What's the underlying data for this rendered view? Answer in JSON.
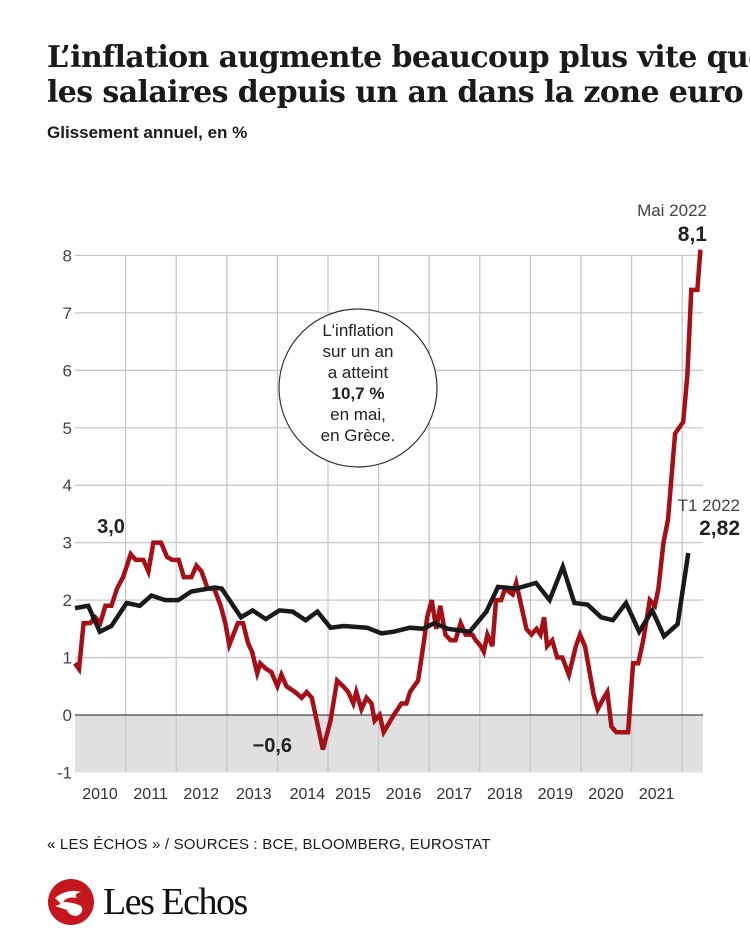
{
  "header": {
    "title_line1": "L’inflation augmente beaucoup plus vite que",
    "title_line2": "les salaires depuis un an dans la zone euro",
    "subtitle": "Glissement annuel, en %"
  },
  "footer": {
    "source": "« LES ÉCHOS » / SOURCES : BCE, BLOOMBERG, EUROSTAT",
    "logo_text": "Les Echos",
    "logo_color": "#c4161c"
  },
  "chart_data": {
    "type": "line",
    "ylim": [
      -1,
      8
    ],
    "yticks": [
      "-1",
      "0",
      "1",
      "2",
      "3",
      "4",
      "5",
      "6",
      "7",
      "8"
    ],
    "xlim": [
      2010,
      2022.4
    ],
    "xtick_labels": [
      "2010",
      "2011",
      "2012",
      "2013",
      "2014",
      "2015",
      "2016",
      "2017",
      "2018",
      "2019",
      "2020",
      "2021"
    ],
    "grid": true,
    "negative_band_color": "#e0e0e0",
    "series": [
      {
        "color": "#a50f15",
        "points": [
          [
            2010.0,
            0.9
          ],
          [
            2010.08,
            0.8
          ],
          [
            2010.17,
            1.6
          ],
          [
            2010.3,
            1.6
          ],
          [
            2010.4,
            1.7
          ],
          [
            2010.5,
            1.6
          ],
          [
            2010.6,
            1.9
          ],
          [
            2010.72,
            1.9
          ],
          [
            2010.83,
            2.2
          ],
          [
            2010.95,
            2.4
          ],
          [
            2011.1,
            2.8
          ],
          [
            2011.2,
            2.7
          ],
          [
            2011.35,
            2.7
          ],
          [
            2011.45,
            2.5
          ],
          [
            2011.55,
            3.0
          ],
          [
            2011.7,
            3.0
          ],
          [
            2011.82,
            2.75
          ],
          [
            2011.92,
            2.7
          ],
          [
            2012.05,
            2.7
          ],
          [
            2012.15,
            2.4
          ],
          [
            2012.3,
            2.4
          ],
          [
            2012.4,
            2.6
          ],
          [
            2012.5,
            2.5
          ],
          [
            2012.62,
            2.2
          ],
          [
            2012.75,
            2.2
          ],
          [
            2012.88,
            1.9
          ],
          [
            2012.97,
            1.6
          ],
          [
            2013.05,
            1.22
          ],
          [
            2013.22,
            1.6
          ],
          [
            2013.32,
            1.6
          ],
          [
            2013.42,
            1.25
          ],
          [
            2013.5,
            1.1
          ],
          [
            2013.6,
            0.73
          ],
          [
            2013.66,
            0.9
          ],
          [
            2013.78,
            0.8
          ],
          [
            2013.88,
            0.75
          ],
          [
            2014.0,
            0.5
          ],
          [
            2014.08,
            0.7
          ],
          [
            2014.18,
            0.5
          ],
          [
            2014.35,
            0.4
          ],
          [
            2014.48,
            0.3
          ],
          [
            2014.58,
            0.4
          ],
          [
            2014.68,
            0.3
          ],
          [
            2014.9,
            -0.6
          ],
          [
            2015.05,
            -0.1
          ],
          [
            2015.18,
            0.6
          ],
          [
            2015.3,
            0.5
          ],
          [
            2015.4,
            0.4
          ],
          [
            2015.5,
            0.2
          ],
          [
            2015.56,
            0.4
          ],
          [
            2015.66,
            0.1
          ],
          [
            2015.76,
            0.3
          ],
          [
            2015.86,
            0.2
          ],
          [
            2015.92,
            -0.1
          ],
          [
            2016.02,
            0.0
          ],
          [
            2016.1,
            -0.3
          ],
          [
            2016.3,
            0.0
          ],
          [
            2016.45,
            0.2
          ],
          [
            2016.55,
            0.2
          ],
          [
            2016.62,
            0.4
          ],
          [
            2016.78,
            0.6
          ],
          [
            2016.9,
            1.3
          ],
          [
            2016.96,
            1.7
          ],
          [
            2017.05,
            2.0
          ],
          [
            2017.14,
            1.5
          ],
          [
            2017.22,
            1.9
          ],
          [
            2017.32,
            1.4
          ],
          [
            2017.42,
            1.3
          ],
          [
            2017.52,
            1.3
          ],
          [
            2017.62,
            1.6
          ],
          [
            2017.72,
            1.4
          ],
          [
            2017.85,
            1.4
          ],
          [
            2017.92,
            1.3
          ],
          [
            2018.02,
            1.2
          ],
          [
            2018.08,
            1.1
          ],
          [
            2018.15,
            1.4
          ],
          [
            2018.25,
            1.2
          ],
          [
            2018.32,
            2.0
          ],
          [
            2018.42,
            2.0
          ],
          [
            2018.5,
            2.2
          ],
          [
            2018.65,
            2.1
          ],
          [
            2018.72,
            2.3
          ],
          [
            2018.82,
            1.9
          ],
          [
            2018.92,
            1.5
          ],
          [
            2019.02,
            1.4
          ],
          [
            2019.12,
            1.5
          ],
          [
            2019.2,
            1.4
          ],
          [
            2019.27,
            1.7
          ],
          [
            2019.33,
            1.2
          ],
          [
            2019.43,
            1.3
          ],
          [
            2019.53,
            1.0
          ],
          [
            2019.63,
            1.0
          ],
          [
            2019.76,
            0.7
          ],
          [
            2019.9,
            1.2
          ],
          [
            2019.98,
            1.4
          ],
          [
            2020.08,
            1.2
          ],
          [
            2020.18,
            0.7
          ],
          [
            2020.25,
            0.35
          ],
          [
            2020.33,
            0.1
          ],
          [
            2020.45,
            0.3
          ],
          [
            2020.52,
            0.4
          ],
          [
            2020.6,
            -0.2
          ],
          [
            2020.7,
            -0.3
          ],
          [
            2020.93,
            -0.3
          ],
          [
            2021.03,
            0.9
          ],
          [
            2021.13,
            0.9
          ],
          [
            2021.23,
            1.3
          ],
          [
            2021.36,
            2.0
          ],
          [
            2021.46,
            1.9
          ],
          [
            2021.53,
            2.2
          ],
          [
            2021.63,
            3.0
          ],
          [
            2021.72,
            3.4
          ],
          [
            2021.86,
            4.9
          ],
          [
            2022.02,
            5.1
          ],
          [
            2022.1,
            5.9
          ],
          [
            2022.18,
            7.4
          ],
          [
            2022.3,
            7.4
          ],
          [
            2022.36,
            8.1
          ]
        ]
      },
      {
        "color": "#1a1a1a",
        "points": [
          [
            2010.0,
            1.86
          ],
          [
            2010.26,
            1.9
          ],
          [
            2010.49,
            1.45
          ],
          [
            2010.72,
            1.55
          ],
          [
            2011.02,
            1.95
          ],
          [
            2011.28,
            1.9
          ],
          [
            2011.51,
            2.08
          ],
          [
            2011.78,
            2.0
          ],
          [
            2012.04,
            2.0
          ],
          [
            2012.3,
            2.15
          ],
          [
            2012.76,
            2.22
          ],
          [
            2012.9,
            2.2
          ],
          [
            2013.28,
            1.7
          ],
          [
            2013.51,
            1.82
          ],
          [
            2013.77,
            1.67
          ],
          [
            2014.04,
            1.82
          ],
          [
            2014.3,
            1.8
          ],
          [
            2014.56,
            1.65
          ],
          [
            2014.79,
            1.8
          ],
          [
            2015.05,
            1.52
          ],
          [
            2015.31,
            1.55
          ],
          [
            2015.77,
            1.52
          ],
          [
            2016.06,
            1.42
          ],
          [
            2016.3,
            1.45
          ],
          [
            2016.62,
            1.52
          ],
          [
            2016.88,
            1.5
          ],
          [
            2017.1,
            1.6
          ],
          [
            2017.37,
            1.5
          ],
          [
            2017.8,
            1.45
          ],
          [
            2018.13,
            1.8
          ],
          [
            2018.36,
            2.23
          ],
          [
            2018.72,
            2.2
          ],
          [
            2019.11,
            2.3
          ],
          [
            2019.38,
            2.0
          ],
          [
            2019.64,
            2.58
          ],
          [
            2019.87,
            1.95
          ],
          [
            2020.13,
            1.92
          ],
          [
            2020.4,
            1.7
          ],
          [
            2020.63,
            1.65
          ],
          [
            2020.89,
            1.95
          ],
          [
            2021.15,
            1.45
          ],
          [
            2021.41,
            1.82
          ],
          [
            2021.64,
            1.37
          ],
          [
            2021.91,
            1.58
          ],
          [
            2022.12,
            2.82
          ]
        ]
      }
    ],
    "annotations": {
      "peak_2011": "3,0",
      "low_2015": "−0,6",
      "red_end_label": "Mai 2022",
      "red_end_value": "8,1",
      "black_end_label": "T1 2022",
      "black_end_value": "2,82",
      "callout": [
        "L'inflation",
        "sur un an",
        "a atteint",
        "10,7 %",
        "en mai,",
        "en Grèce."
      ]
    }
  }
}
